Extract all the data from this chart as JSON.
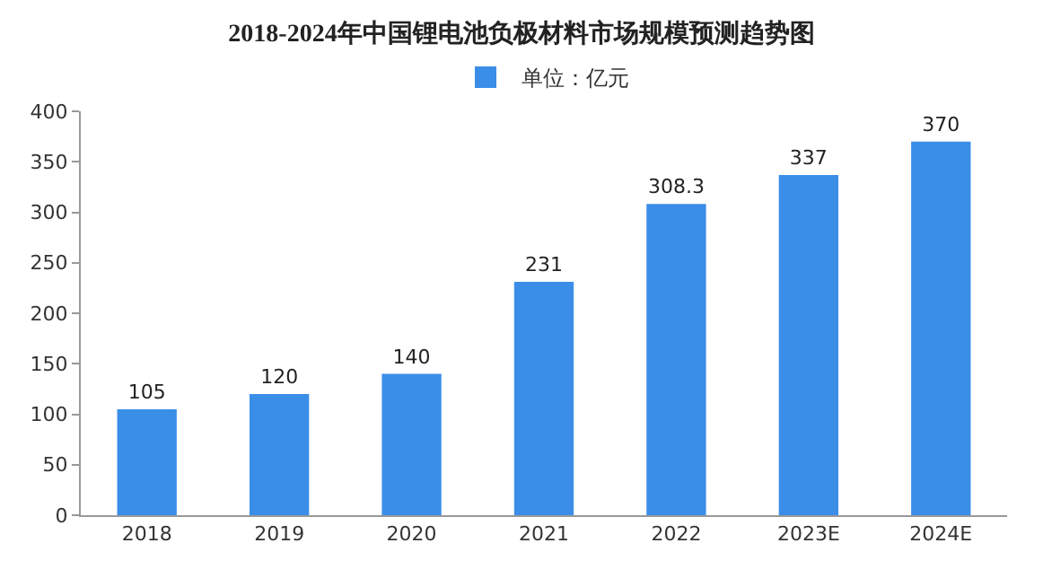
{
  "chart_data": {
    "type": "bar",
    "title": "2018-2024年中国锂电池负极材料市场规模预测趋势图",
    "categories": [
      "2018",
      "2019",
      "2020",
      "2021",
      "2022",
      "2023E",
      "2024E"
    ],
    "series": [
      {
        "name": "单位：亿元",
        "color": "#3b8ee8",
        "values": [
          105,
          120,
          140,
          231,
          308.3,
          337,
          370
        ]
      }
    ],
    "ylim": [
      0,
      400
    ],
    "yticks": [
      0,
      50,
      100,
      150,
      200,
      250,
      300,
      350,
      400
    ],
    "data_labels": true,
    "legend": "top",
    "grid": false
  }
}
